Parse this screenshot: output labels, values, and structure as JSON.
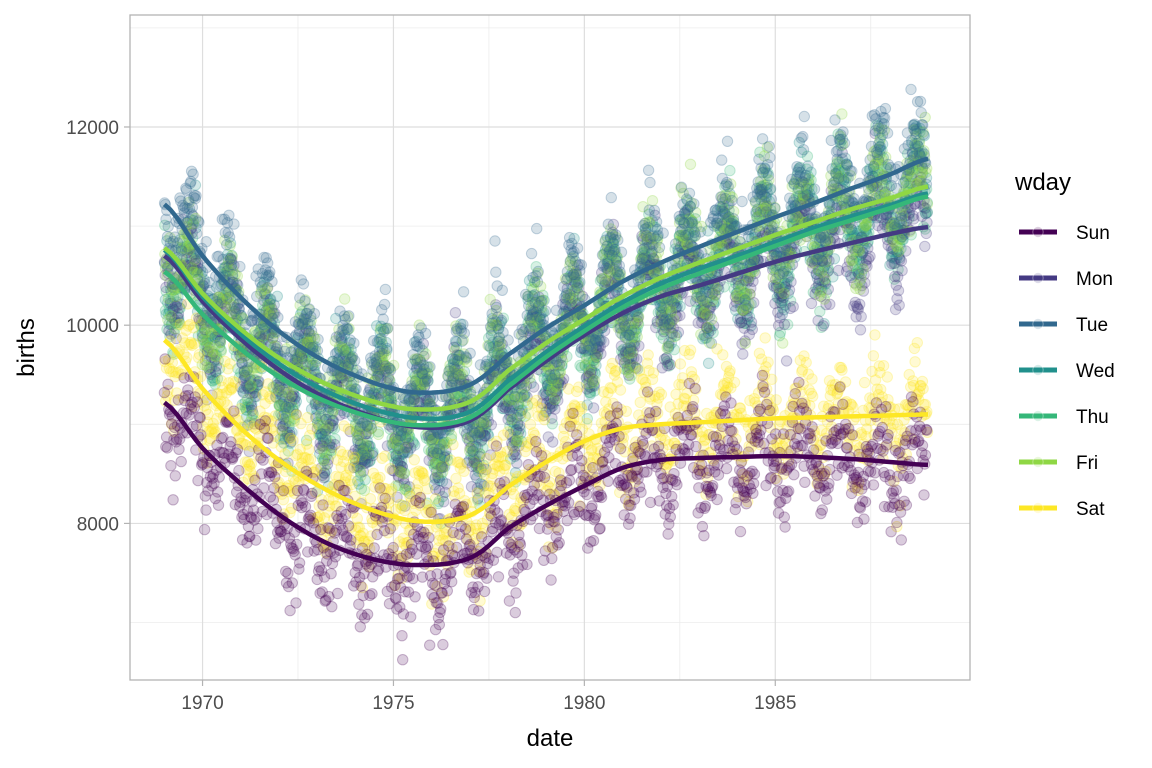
{
  "chart_data": {
    "type": "scatter",
    "title": "",
    "xlabel": "date",
    "ylabel": "births",
    "xlim": [
      1968.1,
      1990.1
    ],
    "ylim": [
      6420,
      13130
    ],
    "x_ticks": [
      1970,
      1975,
      1980,
      1985
    ],
    "x_tick_labels": [
      "1970",
      "1975",
      "1980",
      "1985"
    ],
    "x_minor_ticks": [
      1972.5,
      1977.5,
      1982.5,
      1987.5
    ],
    "y_ticks": [
      8000,
      10000,
      12000
    ],
    "y_tick_labels": [
      "8000",
      "10000",
      "12000"
    ],
    "y_minor_ticks": [
      7000,
      9000,
      11000,
      13000
    ],
    "grid": true,
    "theme": "light",
    "date_range": [
      1969.0,
      1988.99
    ],
    "legend": {
      "title": "wday",
      "position": "right",
      "entries": [
        "Sun",
        "Mon",
        "Tue",
        "Wed",
        "Thu",
        "Fri",
        "Sat"
      ]
    },
    "point_alpha": 0.2,
    "scatter_model": {
      "description": "daily births; each point = smooth trend of its weekday + annual seasonal cycle + noise",
      "seasonal_amplitude": 450,
      "seasonal_peak_fraction_of_year": 0.7,
      "noise_sd": 230,
      "days_per_series": 1044
    },
    "series": [
      {
        "name": "Sun",
        "color": "#440154",
        "smooth_x": [
          1969.0,
          1970.0,
          1971.0,
          1972.0,
          1973.0,
          1974.0,
          1975.0,
          1975.7,
          1976.5,
          1977.2,
          1978.0,
          1979.0,
          1980.0,
          1981.0,
          1982.0,
          1983.0,
          1984.0,
          1985.0,
          1986.0,
          1987.0,
          1988.0,
          1989.0
        ],
        "smooth_y": [
          9220,
          8760,
          8400,
          8090,
          7850,
          7690,
          7600,
          7580,
          7600,
          7690,
          7950,
          8180,
          8380,
          8560,
          8640,
          8660,
          8670,
          8680,
          8670,
          8650,
          8620,
          8590
        ]
      },
      {
        "name": "Mon",
        "color": "#443A83",
        "smooth_x": [
          1969.0,
          1970.0,
          1971.0,
          1972.0,
          1973.0,
          1974.0,
          1975.0,
          1975.7,
          1976.5,
          1977.2,
          1978.0,
          1979.0,
          1980.0,
          1981.0,
          1982.0,
          1983.0,
          1984.0,
          1985.0,
          1986.0,
          1987.0,
          1988.0,
          1989.0
        ],
        "smooth_y": [
          10700,
          10240,
          9860,
          9550,
          9310,
          9140,
          9020,
          8970,
          8980,
          9080,
          9350,
          9640,
          9900,
          10120,
          10290,
          10400,
          10520,
          10640,
          10740,
          10830,
          10920,
          10990
        ]
      },
      {
        "name": "Tue",
        "color": "#31688E",
        "smooth_x": [
          1969.0,
          1970.0,
          1971.0,
          1972.0,
          1973.0,
          1974.0,
          1975.0,
          1975.7,
          1976.5,
          1977.2,
          1978.0,
          1979.0,
          1980.0,
          1981.0,
          1982.0,
          1983.0,
          1984.0,
          1985.0,
          1986.0,
          1987.0,
          1988.0,
          1989.0
        ],
        "smooth_y": [
          11220,
          10700,
          10280,
          9940,
          9680,
          9490,
          9360,
          9320,
          9340,
          9440,
          9700,
          9970,
          10200,
          10440,
          10630,
          10790,
          10940,
          11090,
          11230,
          11380,
          11520,
          11680
        ]
      },
      {
        "name": "Wed",
        "color": "#21908C",
        "smooth_x": [
          1969.0,
          1970.0,
          1971.0,
          1972.0,
          1973.0,
          1974.0,
          1975.0,
          1975.7,
          1976.5,
          1977.2,
          1978.0,
          1979.0,
          1980.0,
          1981.0,
          1982.0,
          1983.0,
          1984.0,
          1985.0,
          1986.0,
          1987.0,
          1988.0,
          1989.0
        ],
        "smooth_y": [
          10760,
          10290,
          9910,
          9610,
          9380,
          9210,
          9100,
          9060,
          9070,
          9170,
          9440,
          9730,
          9990,
          10230,
          10420,
          10570,
          10700,
          10840,
          10980,
          11100,
          11210,
          11330
        ]
      },
      {
        "name": "Thu",
        "color": "#35B779",
        "smooth_x": [
          1969.0,
          1970.0,
          1971.0,
          1972.0,
          1973.0,
          1974.0,
          1975.0,
          1975.7,
          1976.5,
          1977.2,
          1978.0,
          1979.0,
          1980.0,
          1981.0,
          1982.0,
          1983.0,
          1984.0,
          1985.0,
          1986.0,
          1987.0,
          1988.0,
          1989.0
        ],
        "smooth_y": [
          10540,
          10110,
          9760,
          9480,
          9270,
          9120,
          9020,
          8990,
          9010,
          9110,
          9380,
          9680,
          9940,
          10180,
          10370,
          10520,
          10660,
          10800,
          10940,
          11060,
          11180,
          11300
        ]
      },
      {
        "name": "Fri",
        "color": "#8FD744",
        "smooth_x": [
          1969.0,
          1970.0,
          1971.0,
          1972.0,
          1973.0,
          1974.0,
          1975.0,
          1975.7,
          1976.5,
          1977.2,
          1978.0,
          1979.0,
          1980.0,
          1981.0,
          1982.0,
          1983.0,
          1984.0,
          1985.0,
          1986.0,
          1987.0,
          1988.0,
          1989.0
        ],
        "smooth_y": [
          10780,
          10320,
          9960,
          9670,
          9450,
          9290,
          9180,
          9150,
          9170,
          9270,
          9540,
          9820,
          10060,
          10290,
          10480,
          10630,
          10770,
          10910,
          11040,
          11170,
          11280,
          11400
        ]
      },
      {
        "name": "Sat",
        "color": "#FDE725",
        "smooth_x": [
          1969.0,
          1970.0,
          1971.0,
          1972.0,
          1973.0,
          1974.0,
          1975.0,
          1975.7,
          1976.5,
          1977.2,
          1978.0,
          1979.0,
          1980.0,
          1981.0,
          1982.0,
          1983.0,
          1984.0,
          1985.0,
          1986.0,
          1987.0,
          1988.0,
          1989.0
        ],
        "smooth_y": [
          9850,
          9360,
          8960,
          8640,
          8390,
          8200,
          8070,
          8020,
          8030,
          8120,
          8370,
          8620,
          8830,
          8960,
          9000,
          9020,
          9040,
          9060,
          9070,
          9080,
          9090,
          9100
        ]
      }
    ]
  }
}
